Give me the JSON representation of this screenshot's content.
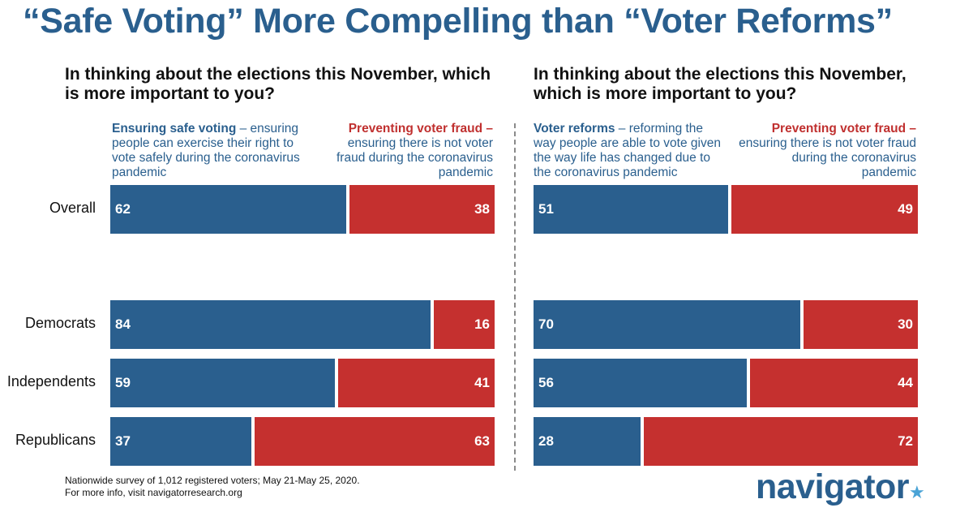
{
  "title": "“Safe Voting” More Compelling than “Voter Reforms”",
  "footnote": {
    "line1": "Nationwide survey of 1,012 registered voters; May 21-May 25, 2020.",
    "line2": "For more info, visit navigatorresearch.org"
  },
  "logo": {
    "text": "navigator",
    "mark": "★"
  },
  "colors": {
    "blue": "#2a5f8e",
    "red": "#c5302f",
    "divider": "#8a8a8a"
  },
  "chart_data": [
    {
      "type": "bar",
      "orientation": "horizontal-stacked",
      "title": "In thinking about the elections this November, which is more important to you?",
      "categories": [
        "Overall",
        "Democrats",
        "Independents",
        "Republicans"
      ],
      "series": [
        {
          "name": "Ensuring safe voting",
          "description": " – ensuring people can exercise their right to vote safely during the coronavirus pandemic",
          "values": [
            62,
            84,
            59,
            37
          ]
        },
        {
          "name": "Preventing voter fraud –",
          "description": "ensuring there is not voter fraud during the coronavirus pandemic",
          "values": [
            38,
            16,
            41,
            63
          ]
        }
      ],
      "xlim": [
        0,
        100
      ]
    },
    {
      "type": "bar",
      "orientation": "horizontal-stacked",
      "title": "In thinking about the elections this November, which is more important to you?",
      "categories": [
        "Overall",
        "Democrats",
        "Independents",
        "Republicans"
      ],
      "series": [
        {
          "name": "Voter reforms",
          "description": " – reforming the way people are able to vote given the way life has changed due to the coronavirus pandemic",
          "values": [
            51,
            70,
            56,
            28
          ]
        },
        {
          "name": "Preventing voter fraud –",
          "description": "ensuring there is not voter fraud during the coronavirus pandemic",
          "values": [
            49,
            30,
            44,
            72
          ]
        }
      ],
      "xlim": [
        0,
        100
      ]
    }
  ]
}
